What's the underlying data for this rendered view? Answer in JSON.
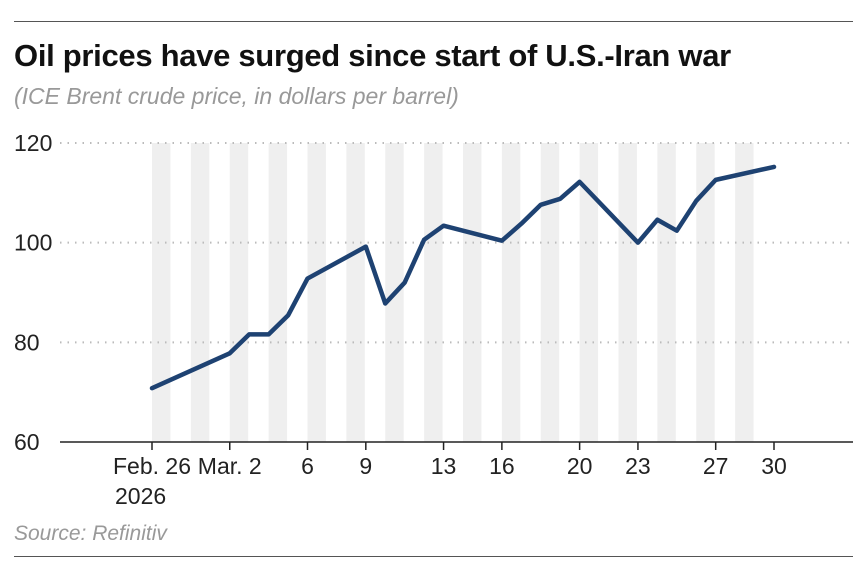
{
  "title": "Oil prices have surged since start of U.S.-Iran war",
  "subtitle": "(ICE Brent crude price, in dollars per barrel)",
  "source": "Source: Refinitiv",
  "colors": {
    "line": "#1e4272",
    "stripe": "#efefef",
    "grid": "#bbbbbb"
  },
  "chart_data": {
    "type": "line",
    "title": "Oil prices have surged since start of U.S.-Iran war",
    "ylabel": "(ICE Brent crude price, in dollars per barrel)",
    "ylim": [
      60,
      120
    ],
    "yticks": [
      60,
      80,
      100,
      120
    ],
    "grid": "horizontal dotted",
    "xticks": [
      {
        "date": "2026-02-26",
        "label": "Feb. 26",
        "label2": "2026"
      },
      {
        "date": "2026-03-02",
        "label": "Mar. 2"
      },
      {
        "date": "2026-03-06",
        "label": "6"
      },
      {
        "date": "2026-03-09",
        "label": "9"
      },
      {
        "date": "2026-03-13",
        "label": "13"
      },
      {
        "date": "2026-03-16",
        "label": "16"
      },
      {
        "date": "2026-03-20",
        "label": "20"
      },
      {
        "date": "2026-03-23",
        "label": "23"
      },
      {
        "date": "2026-03-27",
        "label": "27"
      },
      {
        "date": "2026-03-30",
        "label": "30"
      }
    ],
    "xlim": [
      "2026-02-26",
      "2026-03-30"
    ],
    "series": [
      {
        "points": [
          [
            "2026-02-26",
            70.8
          ],
          [
            "2026-03-02",
            77.8
          ],
          [
            "2026-03-03",
            81.6
          ],
          [
            "2026-03-04",
            81.6
          ],
          [
            "2026-03-05",
            85.4
          ],
          [
            "2026-03-06",
            92.8
          ],
          [
            "2026-03-09",
            99.2
          ],
          [
            "2026-03-10",
            87.8
          ],
          [
            "2026-03-11",
            92.0
          ],
          [
            "2026-03-12",
            100.6
          ],
          [
            "2026-03-13",
            103.4
          ],
          [
            "2026-03-16",
            100.4
          ],
          [
            "2026-03-17",
            103.8
          ],
          [
            "2026-03-18",
            107.6
          ],
          [
            "2026-03-19",
            108.8
          ],
          [
            "2026-03-20",
            112.2
          ],
          [
            "2026-03-23",
            100.0
          ],
          [
            "2026-03-24",
            104.6
          ],
          [
            "2026-03-25",
            102.4
          ],
          [
            "2026-03-26",
            108.4
          ],
          [
            "2026-03-27",
            112.6
          ],
          [
            "2026-03-30",
            115.2
          ]
        ]
      }
    ]
  }
}
